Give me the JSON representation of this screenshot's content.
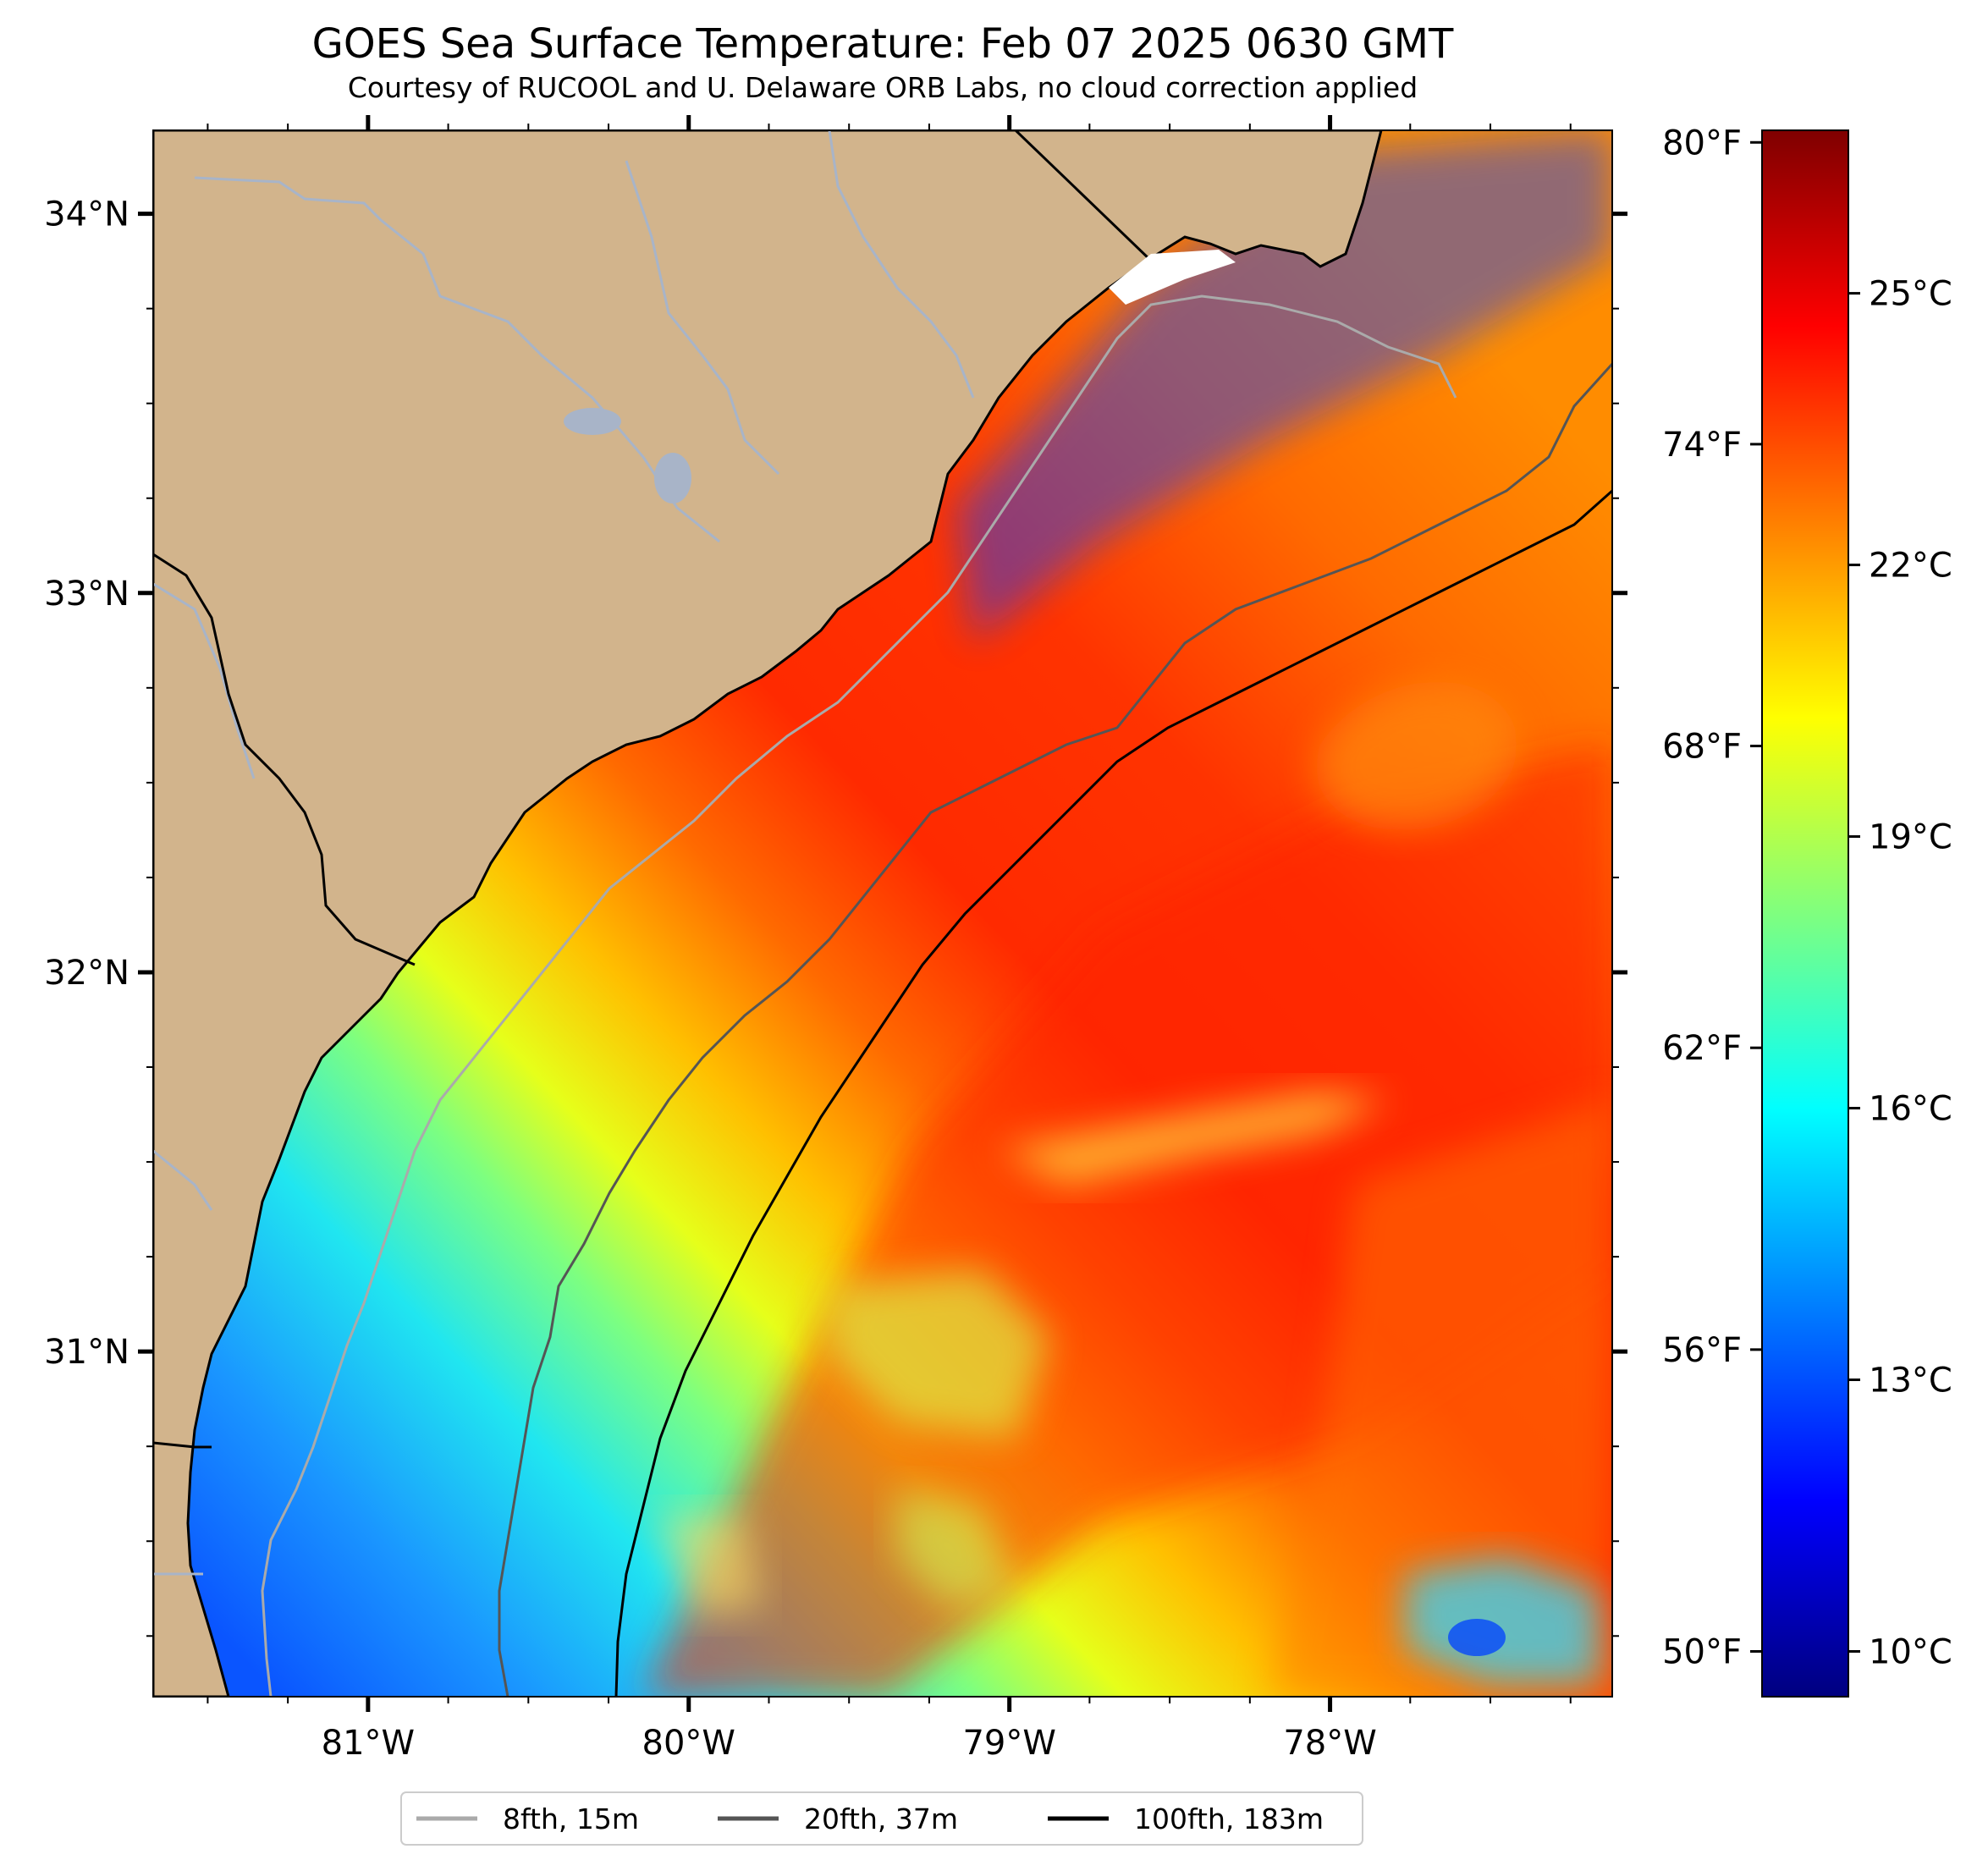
{
  "title": "GOES Sea Surface Temperature: Feb 07 2025 0630 GMT",
  "subtitle": "Courtesy of RUCOOL and U. Delaware ORB Labs, no cloud correction applied",
  "colors": {
    "land": "#d2b48c",
    "river": "#a8b4c8",
    "gulf_stream": "#ff2a00",
    "iso_8fth": "#aaaaaa",
    "iso_20fth": "#555555",
    "iso_100fth": "#000000"
  },
  "map": {
    "lon_range": [
      -81.67,
      -77.12
    ],
    "lat_range": [
      30.09,
      34.22
    ],
    "lon_ticks": [
      {
        "value": -81,
        "label": "81°W"
      },
      {
        "value": -80,
        "label": "80°W"
      },
      {
        "value": -79,
        "label": "79°W"
      },
      {
        "value": -78,
        "label": "78°W"
      }
    ],
    "lat_ticks": [
      {
        "value": 34,
        "label": "34°N"
      },
      {
        "value": 33,
        "label": "33°N"
      },
      {
        "value": 32,
        "label": "32°N"
      },
      {
        "value": 31,
        "label": "31°N"
      }
    ]
  },
  "colorbar": {
    "range_c": [
      9.5,
      26.8
    ],
    "celsius_ticks": [
      {
        "value": 10,
        "label": "10°C"
      },
      {
        "value": 13,
        "label": "13°C"
      },
      {
        "value": 16,
        "label": "16°C"
      },
      {
        "value": 19,
        "label": "19°C"
      },
      {
        "value": 22,
        "label": "22°C"
      },
      {
        "value": 25,
        "label": "25°C"
      }
    ],
    "fahrenheit_ticks": [
      {
        "value": 50,
        "label": "50°F"
      },
      {
        "value": 56,
        "label": "56°F"
      },
      {
        "value": 62,
        "label": "62°F"
      },
      {
        "value": 68,
        "label": "68°F"
      },
      {
        "value": 74,
        "label": "74°F"
      },
      {
        "value": 80,
        "label": "80°F"
      }
    ],
    "colormap": "jet",
    "stops": [
      "#00007f",
      "#0000ff",
      "#007fff",
      "#00ffff",
      "#7fff7f",
      "#ffff00",
      "#ff7f00",
      "#ff0000",
      "#7f0000"
    ]
  },
  "legend": [
    {
      "label": "8fth, 15m",
      "color": "#aaaaaa"
    },
    {
      "label": "20fth, 37m",
      "color": "#555555"
    },
    {
      "label": "100fth, 183m",
      "color": "#000000"
    }
  ]
}
